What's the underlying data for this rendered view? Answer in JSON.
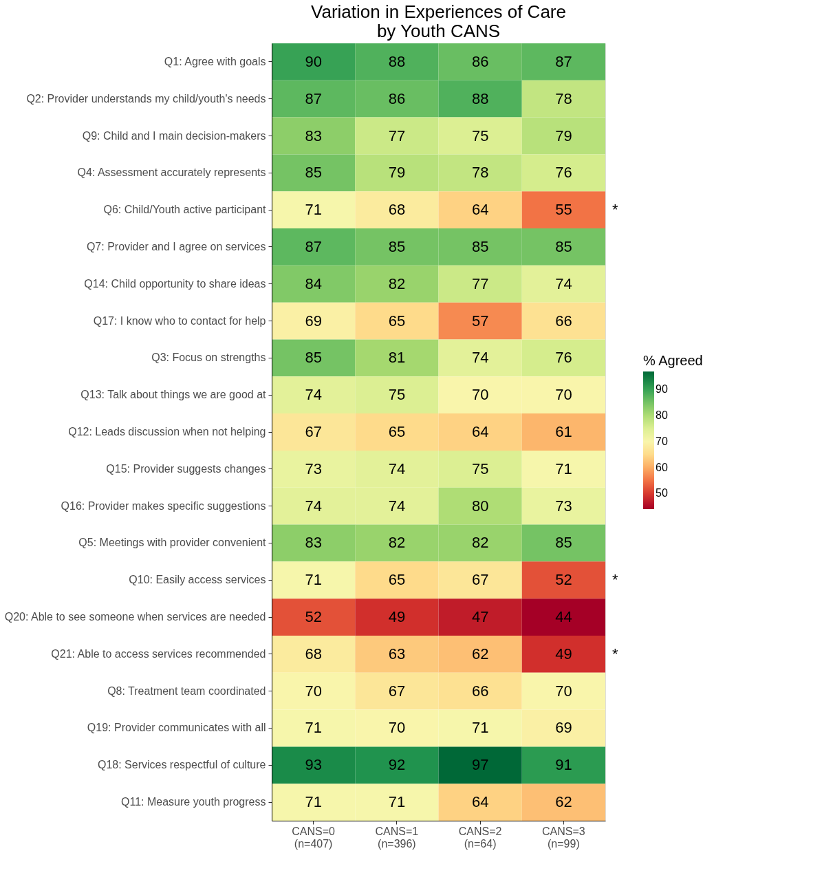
{
  "chart_data": {
    "type": "heatmap",
    "title": "Variation in Experiences of Care\n by Youth CANS",
    "legend_title": "% Agreed",
    "categories": [
      "CANS=0\n(n=407)",
      "CANS=1\n(n=396)",
      "CANS=2\n(n=64)",
      "CANS=3\n(n=99)"
    ],
    "y_categories": [
      "Q1: Agree with goals",
      "Q2: Provider understands my child/youth's needs",
      "Q9: Child and I main decision-makers",
      "Q4: Assessment accurately represents",
      "Q6: Child/Youth active participant",
      "Q7: Provider and I agree on services",
      "Q14: Child opportunity to share ideas",
      "Q17: I know who to contact for help",
      "Q3: Focus on strengths",
      "Q13: Talk about things we are good at",
      "Q12: Leads discussion when not helping",
      "Q15: Provider suggests changes",
      "Q16: Provider makes specific suggestions",
      "Q5: Meetings with provider convenient",
      "Q10: Easily access services",
      "Q20: Able to see someone when services are needed",
      "Q21: Able to access services recommended",
      "Q8: Treatment team coordinated",
      "Q19: Provider communicates with all",
      "Q18: Services respectful of culture",
      "Q11: Measure youth progress"
    ],
    "cells": [
      [
        90,
        88,
        86,
        87
      ],
      [
        87,
        86,
        88,
        78
      ],
      [
        83,
        77,
        75,
        79
      ],
      [
        85,
        79,
        78,
        76
      ],
      [
        71,
        68,
        64,
        55
      ],
      [
        87,
        85,
        85,
        85
      ],
      [
        84,
        82,
        77,
        74
      ],
      [
        69,
        65,
        57,
        66
      ],
      [
        85,
        81,
        74,
        76
      ],
      [
        74,
        75,
        70,
        70
      ],
      [
        67,
        65,
        64,
        61
      ],
      [
        73,
        74,
        75,
        71
      ],
      [
        74,
        74,
        80,
        73
      ],
      [
        83,
        82,
        82,
        85
      ],
      [
        71,
        65,
        67,
        52
      ],
      [
        52,
        49,
        47,
        44
      ],
      [
        68,
        63,
        62,
        49
      ],
      [
        70,
        67,
        66,
        70
      ],
      [
        71,
        70,
        71,
        69
      ],
      [
        93,
        92,
        97,
        91
      ],
      [
        71,
        71,
        64,
        62
      ]
    ],
    "data_labels": true,
    "clim": [
      44,
      97
    ],
    "cticks": [
      50,
      60,
      70,
      80,
      90
    ],
    "annotations": [
      "*",
      "*",
      "*"
    ]
  }
}
